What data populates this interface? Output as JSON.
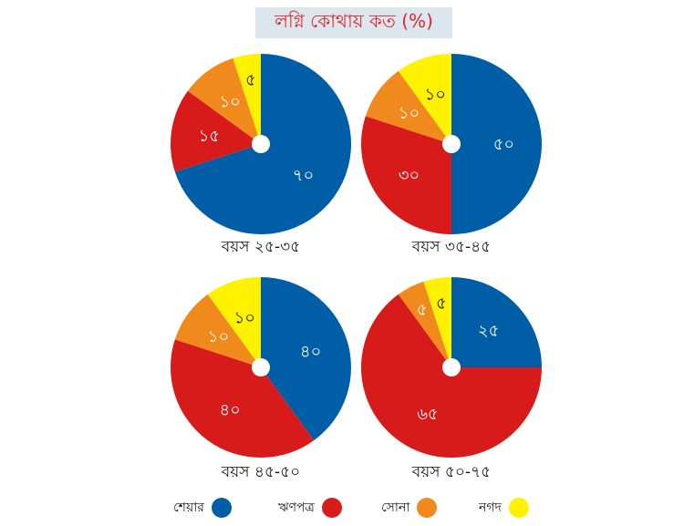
{
  "header": {
    "title": "লগ্নি কোথায় কত (%)"
  },
  "colors": {
    "shares": "#005ea6",
    "bonds": "#d71a1a",
    "gold": "#f18a1c",
    "cash": "#fff200",
    "label_text": "#ffffff",
    "center_hole": "#ffffff"
  },
  "legend": [
    {
      "label": "শেয়ার",
      "color_key": "shares"
    },
    {
      "label": "ঋণপত্র",
      "color_key": "bonds"
    },
    {
      "label": "সোনা",
      "color_key": "gold"
    },
    {
      "label": "নগদ",
      "color_key": "cash"
    }
  ],
  "chart_data": [
    {
      "type": "pie",
      "title": "বয়স ২৫-৩৫",
      "categories": [
        "শেয়ার",
        "ঋণপত্র",
        "সোনা",
        "নগদ"
      ],
      "values": [
        70,
        15,
        10,
        5
      ],
      "labels": [
        "৭০",
        "১৫",
        "১০",
        "৫"
      ]
    },
    {
      "type": "pie",
      "title": "বয়স ৩৫-৪৫",
      "categories": [
        "শেয়ার",
        "ঋণপত্র",
        "সোনা",
        "নগদ"
      ],
      "values": [
        50,
        30,
        10,
        10
      ],
      "labels": [
        "৫০",
        "৩০",
        "১০",
        "১০"
      ]
    },
    {
      "type": "pie",
      "title": "বয়স ৪৫-৫০",
      "categories": [
        "শেয়ার",
        "ঋণপত্র",
        "সোনা",
        "নগদ"
      ],
      "values": [
        40,
        40,
        10,
        10
      ],
      "labels": [
        "৪০",
        "৪০",
        "১০",
        "১০"
      ]
    },
    {
      "type": "pie",
      "title": "বয়স ৫০-৭৫",
      "categories": [
        "শেয়ার",
        "ঋণপত্র",
        "সোনা",
        "নগদ"
      ],
      "values": [
        25,
        65,
        5,
        5
      ],
      "labels": [
        "২৫",
        "৬৫",
        "৫",
        "৫"
      ]
    }
  ]
}
